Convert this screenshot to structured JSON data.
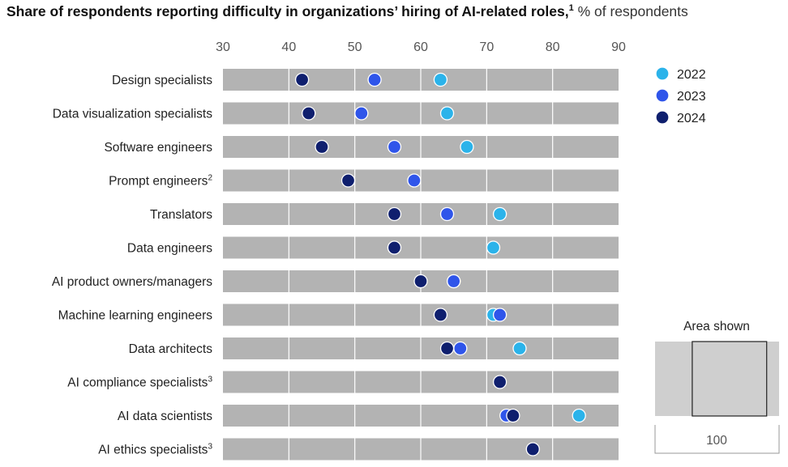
{
  "title": {
    "main": "Share of respondents reporting difficulty in organizations’ hiring of AI-related roles,",
    "footnote": "1",
    "unit": " % of respondents"
  },
  "colors": {
    "2022": "#2bb3ea",
    "2023": "#2f55ea",
    "2024": "#0f1f6e",
    "band": "#b3b3b3",
    "grid": "#ffffff"
  },
  "chart_data": {
    "type": "scatter",
    "orientation": "horizontal-dot-plot",
    "xlim": [
      30,
      90
    ],
    "xticks": [
      30,
      40,
      50,
      60,
      70,
      80,
      90
    ],
    "grid": true,
    "legend_position": "right",
    "series": [
      {
        "name": "2022",
        "color_key": "2022"
      },
      {
        "name": "2023",
        "color_key": "2023"
      },
      {
        "name": "2024",
        "color_key": "2024"
      }
    ],
    "categories": [
      {
        "label": "Design specialists",
        "sup": "",
        "values": {
          "2022": 63,
          "2023": 53,
          "2024": 42
        }
      },
      {
        "label": "Data visualization specialists",
        "sup": "",
        "values": {
          "2022": 64,
          "2023": 51,
          "2024": 43
        }
      },
      {
        "label": "Software engineers",
        "sup": "",
        "values": {
          "2022": 67,
          "2023": 56,
          "2024": 45
        }
      },
      {
        "label": "Prompt engineers",
        "sup": "2",
        "values": {
          "2023": 59,
          "2024": 49
        }
      },
      {
        "label": "Translators",
        "sup": "",
        "values": {
          "2022": 72,
          "2023": 64,
          "2024": 56
        }
      },
      {
        "label": "Data engineers",
        "sup": "",
        "values": {
          "2022": 71,
          "2023": 56,
          "2024": 56
        }
      },
      {
        "label": "AI product owners/managers",
        "sup": "",
        "values": {
          "2022": 65,
          "2023": 65,
          "2024": 60
        }
      },
      {
        "label": "Machine learning engineers",
        "sup": "",
        "values": {
          "2022": 71,
          "2023": 72,
          "2024": 63
        }
      },
      {
        "label": "Data architects",
        "sup": "",
        "values": {
          "2022": 75,
          "2023": 66,
          "2024": 64
        }
      },
      {
        "label": "AI compliance specialists",
        "sup": "3",
        "values": {
          "2024": 72
        }
      },
      {
        "label": "AI data scientists",
        "sup": "",
        "values": {
          "2022": 84,
          "2023": 73,
          "2024": 74
        }
      },
      {
        "label": "AI ethics specialists",
        "sup": "3",
        "values": {
          "2024": 77
        }
      }
    ]
  },
  "area_shown": {
    "label": "Area shown",
    "full_range_value": "100",
    "range": [
      30,
      90
    ],
    "full": [
      0,
      100
    ]
  }
}
